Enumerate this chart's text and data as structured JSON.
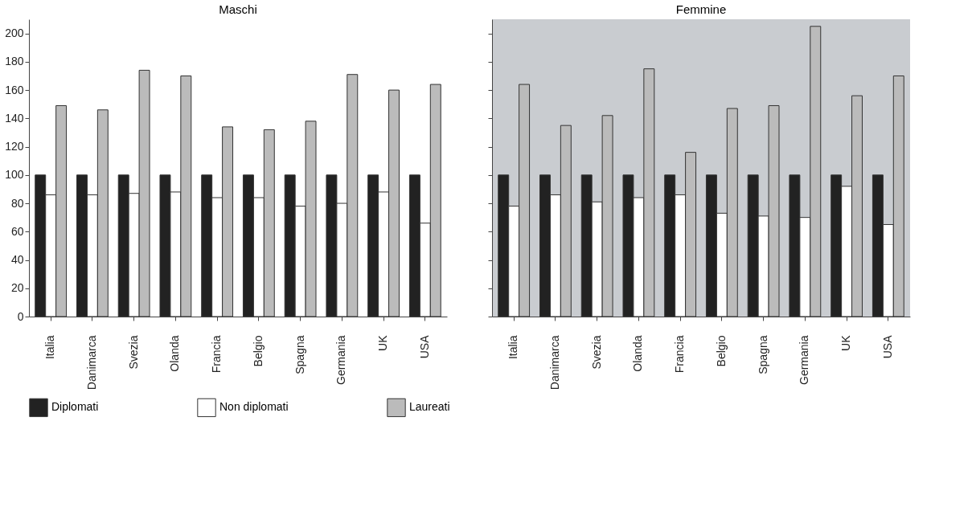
{
  "chart_data": [
    {
      "type": "bar",
      "title": "Maschi",
      "categories": [
        "Italia",
        "Danimarca",
        "Svezia",
        "Olanda",
        "Francia",
        "Belgio",
        "Spagna",
        "Germania",
        "UK",
        "USA"
      ],
      "series": [
        {
          "name": "Diplomati",
          "color": "#222222",
          "values": [
            100,
            100,
            100,
            100,
            100,
            100,
            100,
            100,
            100,
            100
          ]
        },
        {
          "name": "Non diplomati",
          "color": "#ffffff",
          "values": [
            86,
            86,
            87,
            88,
            84,
            84,
            78,
            80,
            88,
            66
          ]
        },
        {
          "name": "Laureati",
          "color": "#bbbbbb",
          "values": [
            149,
            146,
            174,
            170,
            134,
            132,
            138,
            171,
            160,
            164
          ]
        }
      ],
      "ylim": [
        0,
        210
      ],
      "yticks": [
        0,
        20,
        40,
        60,
        80,
        100,
        120,
        140,
        160,
        180,
        200
      ],
      "grid": false,
      "legend": "bottom"
    },
    {
      "type": "bar",
      "title": "Femmine",
      "categories": [
        "Italia",
        "Danimarca",
        "Svezia",
        "Olanda",
        "Francia",
        "Belgio",
        "Spagna",
        "Germania",
        "UK",
        "USA"
      ],
      "series": [
        {
          "name": "Diplomati",
          "color": "#222222",
          "values": [
            100,
            100,
            100,
            100,
            100,
            100,
            100,
            100,
            100,
            100
          ]
        },
        {
          "name": "Non diplomati",
          "color": "#ffffff",
          "values": [
            78,
            86,
            81,
            84,
            86,
            73,
            71,
            70,
            92,
            65
          ]
        },
        {
          "name": "Laureati",
          "color": "#bbbbbb",
          "values": [
            164,
            135,
            142,
            175,
            116,
            147,
            149,
            205,
            156,
            170
          ]
        }
      ],
      "ylim": [
        0,
        210
      ],
      "yticks": [
        0,
        20,
        40,
        60,
        80,
        100,
        120,
        140,
        160,
        180,
        200
      ],
      "tick_labels": "x",
      "grid": false,
      "legend": "bottom"
    }
  ]
}
